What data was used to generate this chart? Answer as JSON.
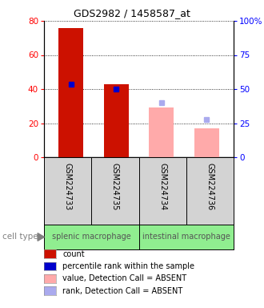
{
  "title": "GDS2982 / 1458587_at",
  "samples": [
    "GSM224733",
    "GSM224735",
    "GSM224734",
    "GSM224736"
  ],
  "count_values": [
    76,
    43,
    0,
    0
  ],
  "absent_value_values": [
    0,
    0,
    29,
    17
  ],
  "absent_rank_values": [
    43,
    40,
    32,
    22
  ],
  "present_flags": [
    true,
    true,
    false,
    false
  ],
  "cell_groups": [
    {
      "label": "splenic macrophage",
      "indices": [
        0,
        1
      ]
    },
    {
      "label": "intestinal macrophage",
      "indices": [
        2,
        3
      ]
    }
  ],
  "ylim_left": [
    0,
    80
  ],
  "ylim_right": [
    0,
    100
  ],
  "yticks_left": [
    0,
    20,
    40,
    60,
    80
  ],
  "yticks_right": [
    0,
    25,
    50,
    75,
    100
  ],
  "ytick_labels_right": [
    "0",
    "25",
    "50",
    "75",
    "100%"
  ],
  "bar_width": 0.55,
  "bar_color_present": "#cc1100",
  "bar_color_absent_value": "#ffaaaa",
  "marker_color_present": "#0000cc",
  "marker_color_absent": "#aaaaee",
  "bg_color_gray": "#d3d3d3",
  "bg_color_green": "#90ee90",
  "cell_type_label": "cell type",
  "legend_items": [
    {
      "color": "#cc1100",
      "label": "count"
    },
    {
      "color": "#0000cc",
      "label": "percentile rank within the sample"
    },
    {
      "color": "#ffaaaa",
      "label": "value, Detection Call = ABSENT"
    },
    {
      "color": "#aaaaee",
      "label": "rank, Detection Call = ABSENT"
    }
  ],
  "title_fontsize": 9,
  "axis_fontsize": 7.5,
  "label_fontsize": 7,
  "legend_fontsize": 7
}
